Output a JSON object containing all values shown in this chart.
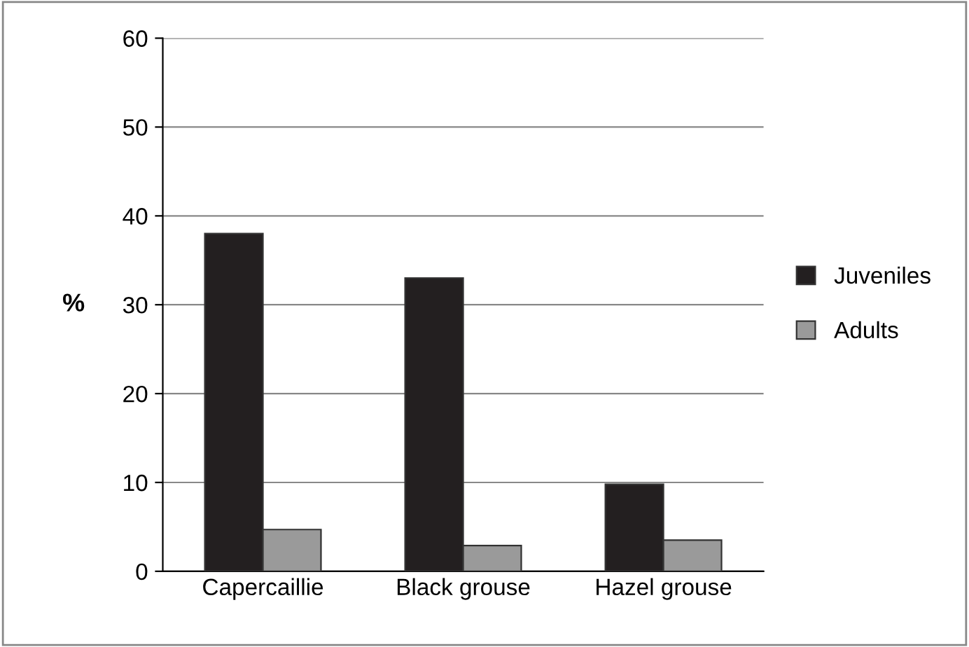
{
  "chart_data": {
    "type": "bar",
    "ylabel": "%",
    "categories": [
      "Capercaillie",
      "Black grouse",
      "Hazel grouse"
    ],
    "series": [
      {
        "name": "Juveniles",
        "color": "#231f20",
        "values": [
          38,
          33,
          9.8
        ]
      },
      {
        "name": "Adults",
        "color": "#9a9a9a",
        "values": [
          4.7,
          2.9,
          3.5
        ]
      }
    ],
    "ylim": [
      0,
      60
    ],
    "yticks": [
      0,
      10,
      20,
      30,
      40,
      50,
      60
    ],
    "grid": "y",
    "legend": "right"
  }
}
